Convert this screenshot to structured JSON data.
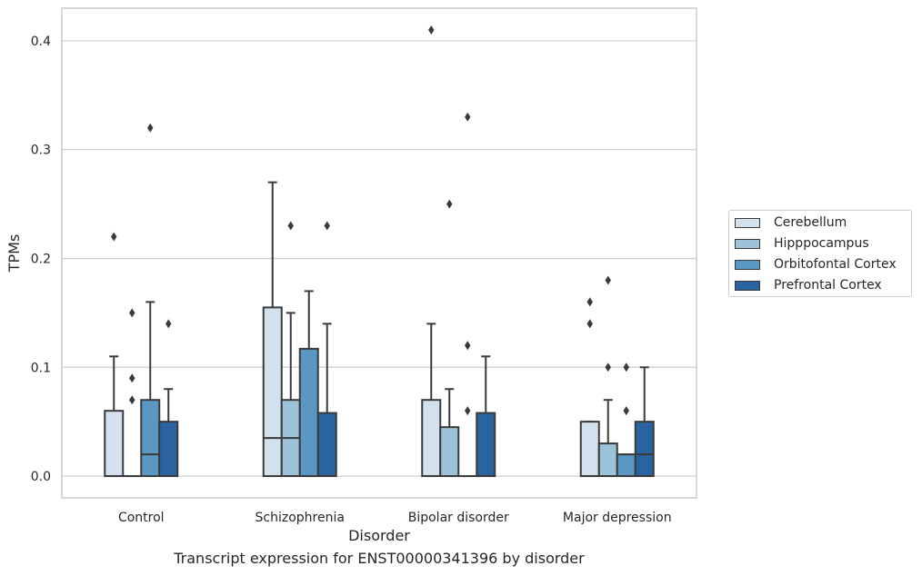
{
  "chart_data": {
    "type": "box",
    "caption": "Transcript expression for ENST00000341396 by disorder",
    "xlabel": "Disorder",
    "ylabel": "TPMs",
    "ylim": [
      -0.02,
      0.43
    ],
    "yticks": [
      0.0,
      0.1,
      0.2,
      0.3,
      0.4
    ],
    "ytick_labels": [
      "0.0",
      "0.1",
      "0.2",
      "0.3",
      "0.4"
    ],
    "grid": "horizontal",
    "legend_position": "right",
    "categories": [
      "Control",
      "Schizophrenia",
      "Bipolar disorder",
      "Major depression"
    ],
    "series": [
      {
        "name": "Cerebellum",
        "color": "#d3e1ef",
        "boxes": [
          {
            "q1": 0,
            "median": 0,
            "q3": 0.06,
            "whisker_low": 0,
            "whisker_high": 0.11,
            "outliers": [
              0.22
            ]
          },
          {
            "q1": 0,
            "median": 0.035,
            "q3": 0.155,
            "whisker_low": 0,
            "whisker_high": 0.27,
            "outliers": []
          },
          {
            "q1": 0,
            "median": 0,
            "q3": 0.07,
            "whisker_low": 0,
            "whisker_high": 0.14,
            "outliers": [
              0.41
            ]
          },
          {
            "q1": 0,
            "median": 0,
            "q3": 0.05,
            "whisker_low": 0,
            "whisker_high": 0.05,
            "outliers": [
              0.14,
              0.16
            ]
          }
        ]
      },
      {
        "name": "Hipppocampus",
        "color": "#9cc3da",
        "boxes": [
          {
            "q1": 0,
            "median": 0,
            "q3": 0,
            "whisker_low": 0,
            "whisker_high": 0,
            "outliers": [
              0.07,
              0.09,
              0.15
            ]
          },
          {
            "q1": 0,
            "median": 0.035,
            "q3": 0.07,
            "whisker_low": 0,
            "whisker_high": 0.15,
            "outliers": [
              0.23
            ]
          },
          {
            "q1": 0,
            "median": 0,
            "q3": 0.045,
            "whisker_low": 0,
            "whisker_high": 0.08,
            "outliers": [
              0.25
            ]
          },
          {
            "q1": 0,
            "median": 0,
            "q3": 0.03,
            "whisker_low": 0,
            "whisker_high": 0.07,
            "outliers": [
              0.1,
              0.18
            ]
          }
        ]
      },
      {
        "name": "Orbitofontal Cortex",
        "color": "#5a97c2",
        "boxes": [
          {
            "q1": 0,
            "median": 0.02,
            "q3": 0.07,
            "whisker_low": 0,
            "whisker_high": 0.16,
            "outliers": [
              0.32
            ]
          },
          {
            "q1": 0,
            "median": 0,
            "q3": 0.117,
            "whisker_low": 0,
            "whisker_high": 0.17,
            "outliers": []
          },
          {
            "q1": 0,
            "median": 0,
            "q3": 0,
            "whisker_low": 0,
            "whisker_high": 0,
            "outliers": [
              0.06,
              0.12,
              0.33
            ]
          },
          {
            "q1": 0,
            "median": 0,
            "q3": 0.02,
            "whisker_low": 0,
            "whisker_high": 0.02,
            "outliers": [
              0.06,
              0.1
            ]
          }
        ]
      },
      {
        "name": "Prefrontal Cortex",
        "color": "#2964a1",
        "boxes": [
          {
            "q1": 0,
            "median": 0,
            "q3": 0.05,
            "whisker_low": 0,
            "whisker_high": 0.08,
            "outliers": [
              0.14
            ]
          },
          {
            "q1": 0,
            "median": 0,
            "q3": 0.058,
            "whisker_low": 0,
            "whisker_high": 0.14,
            "outliers": [
              0.23
            ]
          },
          {
            "q1": 0,
            "median": 0,
            "q3": 0.058,
            "whisker_low": 0,
            "whisker_high": 0.11,
            "outliers": []
          },
          {
            "q1": 0,
            "median": 0.02,
            "q3": 0.05,
            "whisker_low": 0,
            "whisker_high": 0.1,
            "outliers": []
          }
        ]
      }
    ]
  },
  "legend": {
    "items": [
      {
        "label": "Cerebellum",
        "color": "#d3e1ef"
      },
      {
        "label": "Hipppocampus",
        "color": "#9cc3da"
      },
      {
        "label": "Orbitofontal Cortex",
        "color": "#5a97c2"
      },
      {
        "label": "Prefrontal Cortex",
        "color": "#2964a1"
      }
    ]
  }
}
